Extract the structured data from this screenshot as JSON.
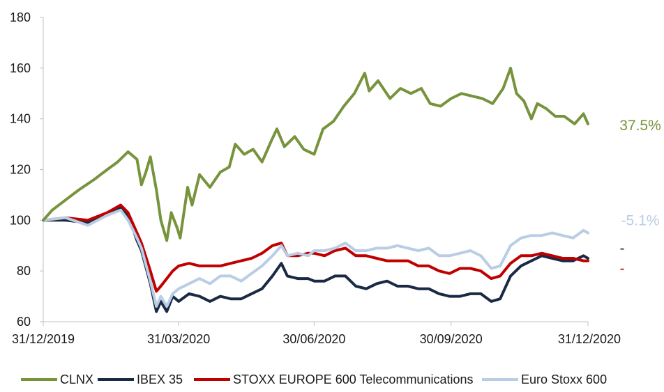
{
  "chart_data": {
    "type": "line",
    "title": "",
    "xlabel": "",
    "ylabel": "",
    "ylim": [
      60,
      180
    ],
    "yticks": [
      60,
      80,
      100,
      120,
      140,
      160,
      180
    ],
    "xlim": [
      "2019-12-31",
      "2020-12-31"
    ],
    "xticks": [
      "2019-12-31",
      "2020-03-31",
      "2020-06-30",
      "2020-09-30",
      "2020-12-31"
    ],
    "xtick_labels": [
      "31/12/2019",
      "31/03/2020",
      "30/06/2020",
      "30/09/2020",
      "31/12/2020"
    ],
    "grid": false,
    "legend_position": "bottom",
    "series": [
      {
        "name": "CLNX",
        "color": "#77933c",
        "end_label": "37.5%",
        "points": [
          [
            "2019-12-31",
            100
          ],
          [
            "2020-01-06",
            104
          ],
          [
            "2020-01-15",
            108
          ],
          [
            "2020-01-24",
            112
          ],
          [
            "2020-02-03",
            116
          ],
          [
            "2020-02-12",
            120
          ],
          [
            "2020-02-19",
            123
          ],
          [
            "2020-02-26",
            127
          ],
          [
            "2020-03-03",
            124
          ],
          [
            "2020-03-06",
            114
          ],
          [
            "2020-03-09",
            119
          ],
          [
            "2020-03-12",
            125
          ],
          [
            "2020-03-16",
            112
          ],
          [
            "2020-03-19",
            100
          ],
          [
            "2020-03-23",
            92
          ],
          [
            "2020-03-26",
            103
          ],
          [
            "2020-03-30",
            97
          ],
          [
            "2020-04-01",
            93
          ],
          [
            "2020-04-06",
            113
          ],
          [
            "2020-04-09",
            106
          ],
          [
            "2020-04-14",
            118
          ],
          [
            "2020-04-21",
            113
          ],
          [
            "2020-04-28",
            119
          ],
          [
            "2020-05-04",
            121
          ],
          [
            "2020-05-08",
            130
          ],
          [
            "2020-05-14",
            126
          ],
          [
            "2020-05-20",
            128
          ],
          [
            "2020-05-26",
            123
          ],
          [
            "2020-06-01",
            131
          ],
          [
            "2020-06-05",
            136
          ],
          [
            "2020-06-10",
            129
          ],
          [
            "2020-06-17",
            133
          ],
          [
            "2020-06-23",
            128
          ],
          [
            "2020-06-30",
            126
          ],
          [
            "2020-07-06",
            136
          ],
          [
            "2020-07-13",
            139
          ],
          [
            "2020-07-20",
            145
          ],
          [
            "2020-07-27",
            150
          ],
          [
            "2020-08-03",
            158
          ],
          [
            "2020-08-06",
            151
          ],
          [
            "2020-08-12",
            155
          ],
          [
            "2020-08-20",
            148
          ],
          [
            "2020-08-27",
            152
          ],
          [
            "2020-09-03",
            150
          ],
          [
            "2020-09-10",
            152
          ],
          [
            "2020-09-16",
            146
          ],
          [
            "2020-09-23",
            145
          ],
          [
            "2020-09-30",
            148
          ],
          [
            "2020-10-07",
            150
          ],
          [
            "2020-10-14",
            149
          ],
          [
            "2020-10-21",
            148
          ],
          [
            "2020-10-28",
            146
          ],
          [
            "2020-11-04",
            152
          ],
          [
            "2020-11-09",
            160
          ],
          [
            "2020-11-13",
            150
          ],
          [
            "2020-11-18",
            147
          ],
          [
            "2020-11-23",
            140
          ],
          [
            "2020-11-27",
            146
          ],
          [
            "2020-12-03",
            144
          ],
          [
            "2020-12-09",
            141
          ],
          [
            "2020-12-15",
            141
          ],
          [
            "2020-12-22",
            138
          ],
          [
            "2020-12-28",
            142
          ],
          [
            "2020-12-31",
            138
          ]
        ]
      },
      {
        "name": "IBEX 35",
        "color": "#1b2a44",
        "end_label": "-",
        "points": [
          [
            "2019-12-31",
            100
          ],
          [
            "2020-01-15",
            100
          ],
          [
            "2020-01-30",
            99
          ],
          [
            "2020-02-12",
            102
          ],
          [
            "2020-02-21",
            105
          ],
          [
            "2020-02-26",
            102
          ],
          [
            "2020-03-03",
            92
          ],
          [
            "2020-03-06",
            88
          ],
          [
            "2020-03-12",
            75
          ],
          [
            "2020-03-16",
            64
          ],
          [
            "2020-03-19",
            68
          ],
          [
            "2020-03-23",
            64
          ],
          [
            "2020-03-27",
            70
          ],
          [
            "2020-03-31",
            68
          ],
          [
            "2020-04-07",
            71
          ],
          [
            "2020-04-14",
            70
          ],
          [
            "2020-04-21",
            68
          ],
          [
            "2020-04-28",
            70
          ],
          [
            "2020-05-05",
            69
          ],
          [
            "2020-05-12",
            69
          ],
          [
            "2020-05-19",
            71
          ],
          [
            "2020-05-26",
            73
          ],
          [
            "2020-06-02",
            78
          ],
          [
            "2020-06-08",
            83
          ],
          [
            "2020-06-12",
            78
          ],
          [
            "2020-06-19",
            77
          ],
          [
            "2020-06-26",
            77
          ],
          [
            "2020-06-30",
            76
          ],
          [
            "2020-07-07",
            76
          ],
          [
            "2020-07-14",
            78
          ],
          [
            "2020-07-21",
            78
          ],
          [
            "2020-07-28",
            74
          ],
          [
            "2020-08-04",
            73
          ],
          [
            "2020-08-11",
            75
          ],
          [
            "2020-08-18",
            76
          ],
          [
            "2020-08-25",
            74
          ],
          [
            "2020-09-01",
            74
          ],
          [
            "2020-09-08",
            73
          ],
          [
            "2020-09-15",
            73
          ],
          [
            "2020-09-22",
            71
          ],
          [
            "2020-09-29",
            70
          ],
          [
            "2020-10-06",
            70
          ],
          [
            "2020-10-13",
            71
          ],
          [
            "2020-10-20",
            71
          ],
          [
            "2020-10-27",
            68
          ],
          [
            "2020-11-02",
            69
          ],
          [
            "2020-11-09",
            78
          ],
          [
            "2020-11-16",
            82
          ],
          [
            "2020-11-23",
            84
          ],
          [
            "2020-11-30",
            86
          ],
          [
            "2020-12-07",
            85
          ],
          [
            "2020-12-14",
            84
          ],
          [
            "2020-12-21",
            84
          ],
          [
            "2020-12-28",
            86
          ],
          [
            "2020-12-31",
            85
          ]
        ]
      },
      {
        "name": "STOXX EUROPE 600 Telecommunications",
        "color": "#c00000",
        "end_label": "-",
        "points": [
          [
            "2019-12-31",
            100
          ],
          [
            "2020-01-15",
            101
          ],
          [
            "2020-01-30",
            100
          ],
          [
            "2020-02-12",
            103
          ],
          [
            "2020-02-21",
            106
          ],
          [
            "2020-02-26",
            103
          ],
          [
            "2020-03-03",
            95
          ],
          [
            "2020-03-06",
            91
          ],
          [
            "2020-03-12",
            80
          ],
          [
            "2020-03-16",
            72
          ],
          [
            "2020-03-19",
            74
          ],
          [
            "2020-03-23",
            77
          ],
          [
            "2020-03-27",
            80
          ],
          [
            "2020-03-31",
            82
          ],
          [
            "2020-04-07",
            83
          ],
          [
            "2020-04-14",
            82
          ],
          [
            "2020-04-21",
            82
          ],
          [
            "2020-04-28",
            82
          ],
          [
            "2020-05-05",
            83
          ],
          [
            "2020-05-12",
            84
          ],
          [
            "2020-05-19",
            85
          ],
          [
            "2020-05-26",
            87
          ],
          [
            "2020-06-02",
            90
          ],
          [
            "2020-06-08",
            91
          ],
          [
            "2020-06-12",
            86
          ],
          [
            "2020-06-19",
            86
          ],
          [
            "2020-06-26",
            87
          ],
          [
            "2020-06-30",
            87
          ],
          [
            "2020-07-07",
            86
          ],
          [
            "2020-07-14",
            88
          ],
          [
            "2020-07-21",
            89
          ],
          [
            "2020-07-28",
            86
          ],
          [
            "2020-08-04",
            86
          ],
          [
            "2020-08-11",
            85
          ],
          [
            "2020-08-18",
            84
          ],
          [
            "2020-08-25",
            84
          ],
          [
            "2020-09-01",
            84
          ],
          [
            "2020-09-08",
            82
          ],
          [
            "2020-09-15",
            82
          ],
          [
            "2020-09-22",
            80
          ],
          [
            "2020-09-29",
            79
          ],
          [
            "2020-10-06",
            81
          ],
          [
            "2020-10-13",
            81
          ],
          [
            "2020-10-20",
            80
          ],
          [
            "2020-10-27",
            77
          ],
          [
            "2020-11-02",
            78
          ],
          [
            "2020-11-09",
            83
          ],
          [
            "2020-11-16",
            86
          ],
          [
            "2020-11-23",
            86
          ],
          [
            "2020-11-30",
            87
          ],
          [
            "2020-12-07",
            86
          ],
          [
            "2020-12-14",
            85
          ],
          [
            "2020-12-21",
            85
          ],
          [
            "2020-12-28",
            84
          ],
          [
            "2020-12-31",
            84
          ]
        ]
      },
      {
        "name": "Euro Stoxx 600",
        "color": "#b9cde5",
        "end_label": "-5.1%",
        "points": [
          [
            "2019-12-31",
            100
          ],
          [
            "2020-01-15",
            101
          ],
          [
            "2020-01-30",
            98
          ],
          [
            "2020-02-12",
            102
          ],
          [
            "2020-02-21",
            104
          ],
          [
            "2020-02-26",
            100
          ],
          [
            "2020-03-03",
            93
          ],
          [
            "2020-03-06",
            89
          ],
          [
            "2020-03-12",
            76
          ],
          [
            "2020-03-16",
            66
          ],
          [
            "2020-03-19",
            70
          ],
          [
            "2020-03-23",
            66
          ],
          [
            "2020-03-27",
            71
          ],
          [
            "2020-03-31",
            73
          ],
          [
            "2020-04-07",
            75
          ],
          [
            "2020-04-14",
            77
          ],
          [
            "2020-04-21",
            75
          ],
          [
            "2020-04-28",
            78
          ],
          [
            "2020-05-05",
            78
          ],
          [
            "2020-05-12",
            76
          ],
          [
            "2020-05-19",
            79
          ],
          [
            "2020-05-26",
            82
          ],
          [
            "2020-06-02",
            86
          ],
          [
            "2020-06-08",
            90
          ],
          [
            "2020-06-12",
            86
          ],
          [
            "2020-06-19",
            87
          ],
          [
            "2020-06-26",
            86
          ],
          [
            "2020-06-30",
            88
          ],
          [
            "2020-07-07",
            88
          ],
          [
            "2020-07-14",
            89
          ],
          [
            "2020-07-21",
            91
          ],
          [
            "2020-07-28",
            88
          ],
          [
            "2020-08-04",
            88
          ],
          [
            "2020-08-11",
            89
          ],
          [
            "2020-08-18",
            89
          ],
          [
            "2020-08-25",
            90
          ],
          [
            "2020-09-01",
            89
          ],
          [
            "2020-09-08",
            88
          ],
          [
            "2020-09-15",
            89
          ],
          [
            "2020-09-22",
            86
          ],
          [
            "2020-09-29",
            86
          ],
          [
            "2020-10-06",
            87
          ],
          [
            "2020-10-13",
            88
          ],
          [
            "2020-10-20",
            86
          ],
          [
            "2020-10-27",
            81
          ],
          [
            "2020-11-02",
            82
          ],
          [
            "2020-11-09",
            90
          ],
          [
            "2020-11-16",
            93
          ],
          [
            "2020-11-23",
            94
          ],
          [
            "2020-11-30",
            94
          ],
          [
            "2020-12-07",
            95
          ],
          [
            "2020-12-14",
            94
          ],
          [
            "2020-12-21",
            93
          ],
          [
            "2020-12-28",
            96
          ],
          [
            "2020-12-31",
            95
          ]
        ]
      }
    ]
  }
}
